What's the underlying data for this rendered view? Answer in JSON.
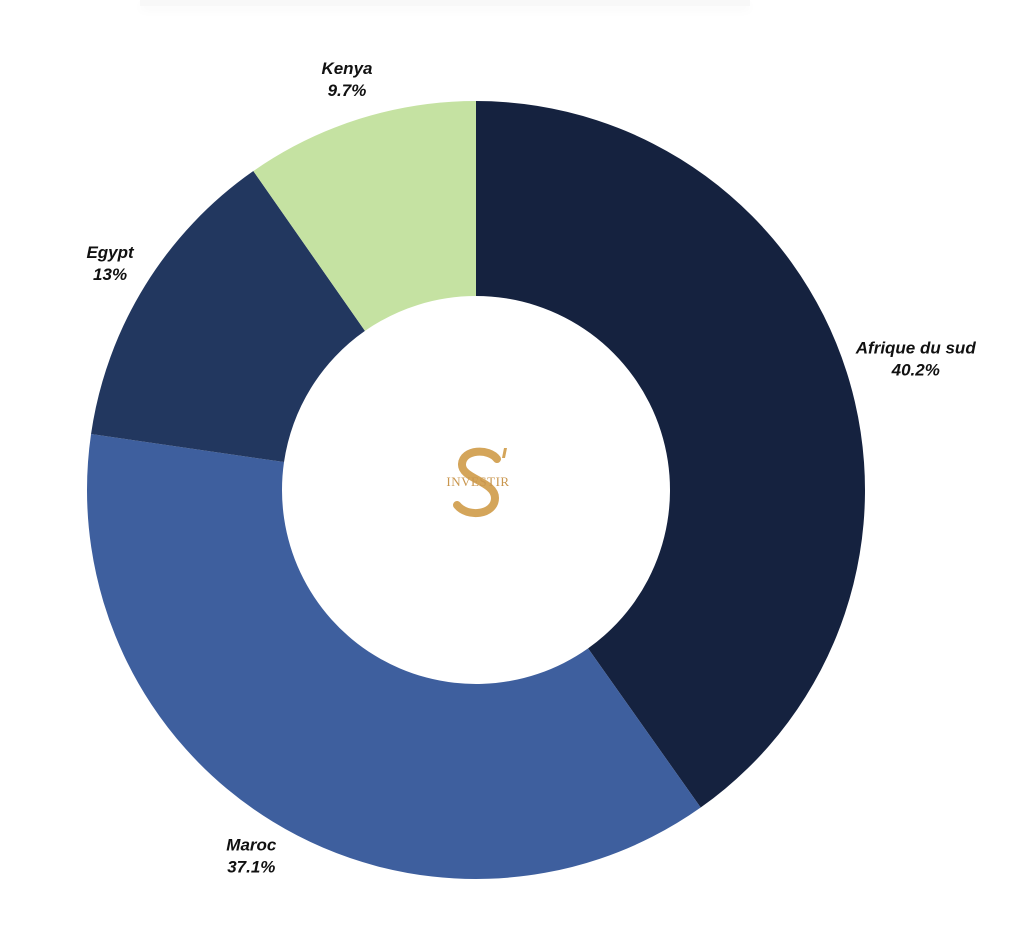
{
  "chart_data": {
    "type": "pie",
    "donut": true,
    "start": "top",
    "direction": "clockwise",
    "slices": [
      {
        "label": "Afrique du sud",
        "value": 40.2,
        "display": "40.2%",
        "color": "#15223f"
      },
      {
        "label": "Maroc",
        "value": 37.1,
        "display": "37.1%",
        "color": "#3e5f9e"
      },
      {
        "label": "Egypt",
        "value": 13,
        "display": "13%",
        "color": "#22375f"
      },
      {
        "label": "Kenya",
        "value": 9.7,
        "display": "9.7%",
        "color": "#c5e2a2"
      }
    ],
    "legend": "none"
  },
  "logo": {
    "text": "S' INVESTIR",
    "color": "#d4a55a"
  }
}
